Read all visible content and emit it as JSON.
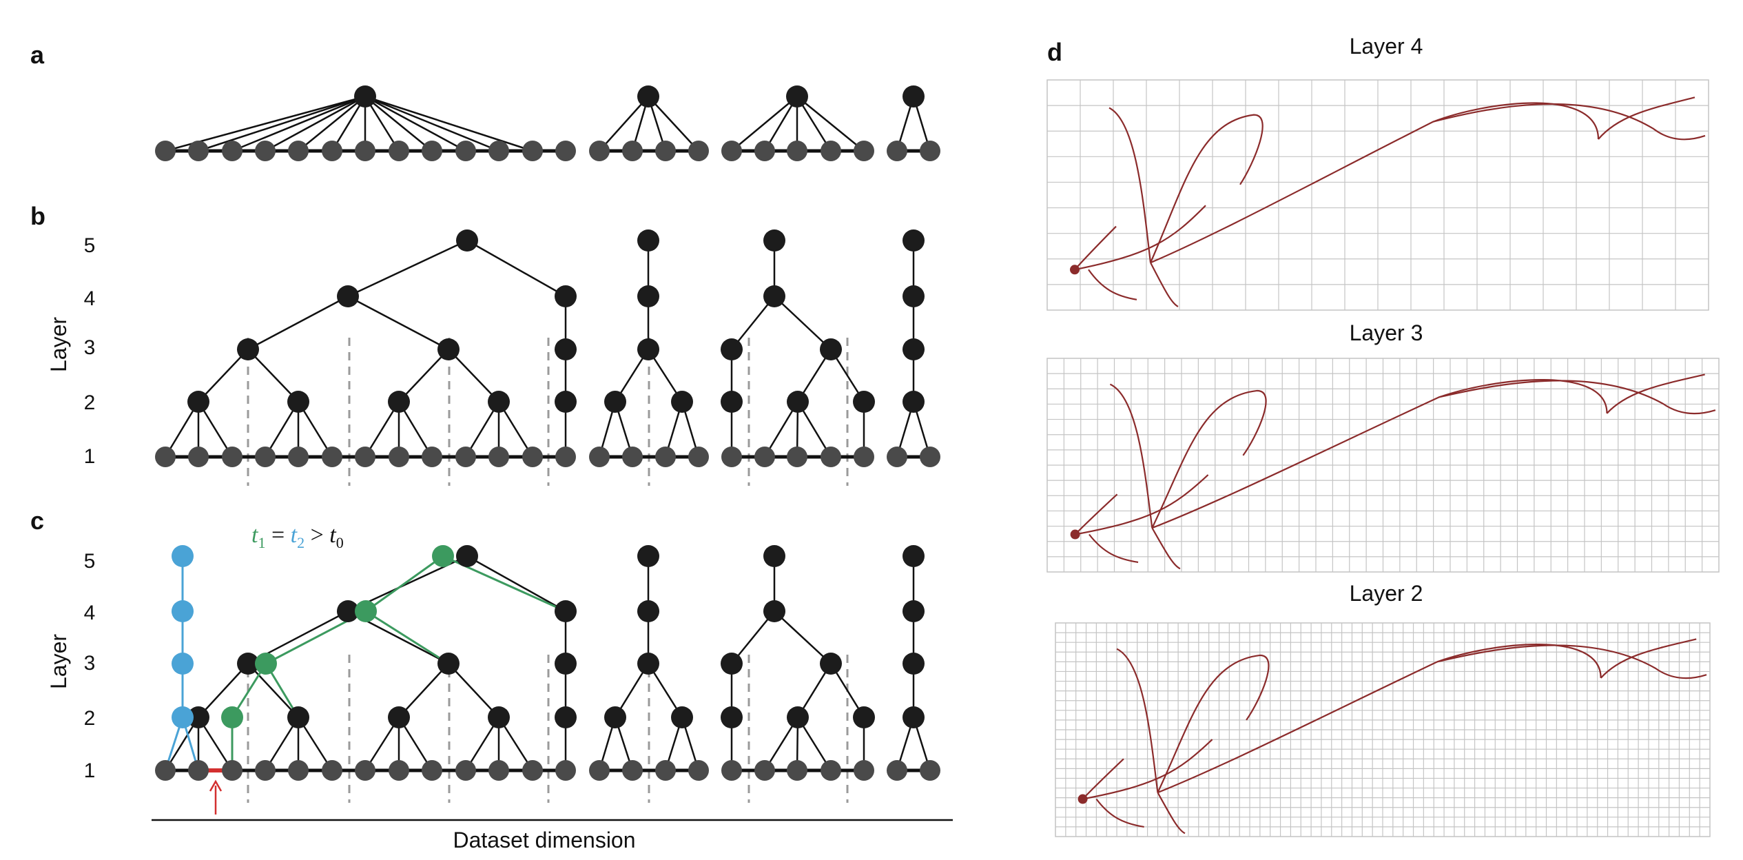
{
  "panel_letters": {
    "a": "a",
    "b": "b",
    "c": "c",
    "d": "d"
  },
  "axis": {
    "y_label": "Layer",
    "x_label": "Dataset dimension",
    "layer_ticks": [
      "5",
      "4",
      "3",
      "2",
      "1"
    ]
  },
  "equation": {
    "t1": "t",
    "t1_sub": "1",
    "eq": " = ",
    "t2": "t",
    "t2_sub": "2",
    "gt": " > ",
    "t0": "t",
    "t0_sub": "0"
  },
  "neuron_panels": [
    {
      "title": "Layer 4"
    },
    {
      "title": "Layer 3"
    },
    {
      "title": "Layer 2"
    }
  ],
  "colors": {
    "node_dark": "#1c1c1c",
    "node_base": "#4a4a4a",
    "edge": "#111111",
    "dashed": "#9a9a9a",
    "blue": "#4aa3d6",
    "green": "#3c9a5f",
    "red": "#d32f2f",
    "neuron": "#8b2b2b",
    "grid": "#c4c4c4"
  }
}
